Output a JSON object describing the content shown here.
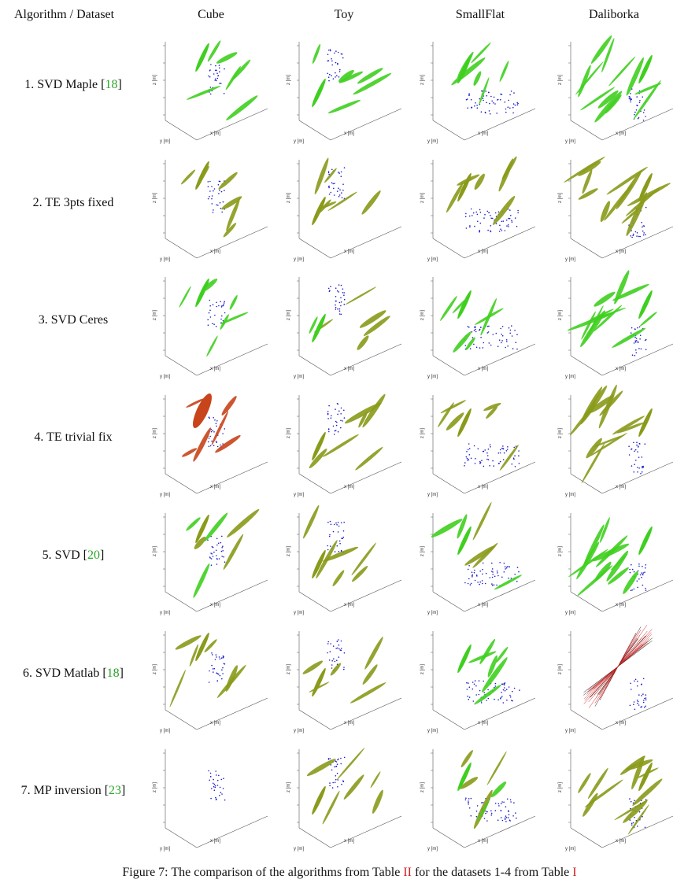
{
  "header": {
    "row_header": "Algorithm / Dataset",
    "columns": [
      "Cube",
      "Toy",
      "SmallFlat",
      "Daliborka"
    ]
  },
  "rows": [
    {
      "label": "1. SVD Maple [",
      "ref": "18",
      "close": "]"
    },
    {
      "label": "2. TE 3pts fixed",
      "ref": "",
      "close": ""
    },
    {
      "label": "3. SVD Ceres",
      "ref": "",
      "close": ""
    },
    {
      "label": "4. TE trivial fix",
      "ref": "",
      "close": ""
    },
    {
      "label": "5. SVD [",
      "ref": "20",
      "close": "]"
    },
    {
      "label": "6. SVD Matlab [",
      "ref": "18",
      "close": "]"
    },
    {
      "label": "7. MP inversion [",
      "ref": "23",
      "close": "]"
    }
  ],
  "colors": {
    "ellipse_green": "#3fcf1f",
    "ellipse_olive": "#8a9a1a",
    "ellipse_red": "#c8441a",
    "points_blue": "#1a1acc",
    "axes": "#555555",
    "ref_link": "#2aa52a",
    "table_link": "#d41c1c"
  },
  "plot_axes": {
    "zlabel": "z [m]",
    "xlabel": "x [m]",
    "ylabel": "y [m]"
  },
  "caption": {
    "prefix": "Figure 7: The comparison of the algorithms from Table ",
    "ref1": "II",
    "middle": " for the datasets 1-4 from Table ",
    "ref2": "I"
  }
}
